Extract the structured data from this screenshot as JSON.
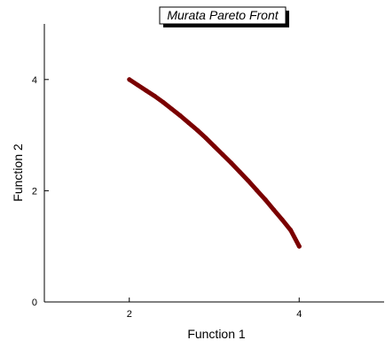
{
  "chart_data": {
    "type": "line",
    "title": "Murata Pareto Front",
    "xlabel": "Function 1",
    "ylabel": "Function 2",
    "xlim": [
      1,
      5
    ],
    "ylim": [
      0,
      5
    ],
    "xticks": [
      2,
      4
    ],
    "yticks": [
      0,
      2,
      4
    ],
    "grid": false,
    "series_color": "#7a0000",
    "series": [
      {
        "x": [
          2.0,
          2.1,
          2.2,
          2.3,
          2.4,
          2.5,
          2.6,
          2.7,
          2.8,
          2.9,
          3.0,
          3.1,
          3.2,
          3.3,
          3.4,
          3.5,
          3.6,
          3.7,
          3.8,
          3.9,
          4.0
        ],
        "y": [
          4.0,
          3.9,
          3.8,
          3.7,
          3.59,
          3.47,
          3.35,
          3.22,
          3.09,
          2.95,
          2.8,
          2.65,
          2.5,
          2.34,
          2.18,
          2.01,
          1.84,
          1.66,
          1.48,
          1.29,
          1.0
        ]
      }
    ]
  }
}
